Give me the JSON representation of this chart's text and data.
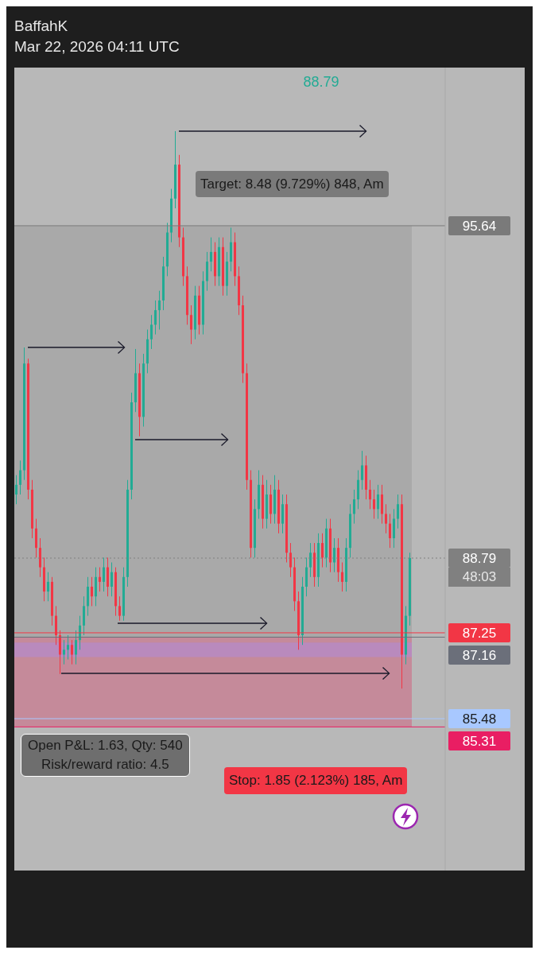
{
  "chart_data": {
    "type": "candlestick",
    "title": "BaffahK",
    "subtitle": "Mar 22, 2026 04:11 UTC",
    "categories": [
      null,
      null,
      null,
      null,
      null,
      null,
      null,
      null,
      null,
      null,
      null,
      null,
      null,
      null,
      null,
      null,
      null,
      null,
      null,
      null,
      null,
      null,
      null,
      null,
      null,
      null,
      null,
      null,
      null,
      null,
      null,
      null,
      null,
      null,
      null,
      null,
      null,
      null,
      null,
      null,
      null,
      null,
      null,
      null,
      null,
      null,
      null,
      null,
      null,
      null,
      null,
      null,
      null,
      null,
      null,
      null,
      null,
      null,
      null,
      null,
      null,
      null,
      null,
      null,
      null,
      null,
      null,
      null,
      null,
      null,
      null,
      null,
      null,
      null,
      null,
      null,
      null,
      null,
      null,
      null,
      null,
      null,
      null,
      null,
      null,
      null,
      null,
      null,
      null,
      null,
      null,
      null,
      null,
      null,
      null,
      null,
      null,
      null,
      null,
      null
    ],
    "ohlc": [
      [
        90.1,
        90.5,
        89.9,
        90.3
      ],
      [
        90.3,
        90.8,
        90.1,
        90.6
      ],
      [
        90.6,
        93.13,
        90.4,
        92.8
      ],
      [
        92.8,
        92.9,
        90.0,
        90.2
      ],
      [
        90.2,
        90.4,
        89.2,
        89.4
      ],
      [
        89.4,
        89.6,
        88.8,
        89.0
      ],
      [
        89.0,
        89.2,
        88.4,
        88.6
      ],
      [
        88.6,
        88.8,
        87.9,
        88.1
      ],
      [
        88.1,
        88.5,
        87.9,
        88.3
      ],
      [
        88.3,
        88.4,
        87.4,
        87.6
      ],
      [
        87.6,
        87.8,
        87.0,
        87.2
      ],
      [
        87.2,
        87.3,
        86.4,
        86.8
      ],
      [
        86.8,
        87.1,
        86.6,
        86.9
      ],
      [
        86.9,
        87.2,
        86.7,
        87.0
      ],
      [
        87.0,
        87.1,
        86.6,
        86.8
      ],
      [
        86.8,
        87.3,
        86.6,
        87.1
      ],
      [
        87.1,
        87.6,
        86.9,
        87.4
      ],
      [
        87.4,
        88.0,
        87.2,
        87.8
      ],
      [
        87.8,
        88.4,
        87.6,
        88.2
      ],
      [
        88.2,
        88.4,
        87.8,
        88.0
      ],
      [
        88.0,
        88.6,
        87.8,
        88.4
      ],
      [
        88.4,
        88.6,
        88.1,
        88.3
      ],
      [
        88.3,
        88.8,
        88.1,
        88.6
      ],
      [
        88.6,
        88.8,
        88.0,
        88.2
      ],
      [
        88.2,
        88.7,
        88.0,
        88.5
      ],
      [
        88.5,
        88.6,
        87.6,
        87.8
      ],
      [
        87.8,
        88.0,
        87.5,
        87.6
      ],
      [
        87.6,
        88.6,
        87.5,
        88.4
      ],
      [
        88.4,
        90.4,
        88.2,
        90.2
      ],
      [
        90.2,
        92.2,
        90.0,
        92.0
      ],
      [
        92.0,
        93.1,
        91.8,
        92.6
      ],
      [
        92.6,
        92.8,
        91.3,
        91.7
      ],
      [
        91.7,
        93.0,
        91.5,
        92.8
      ],
      [
        92.8,
        93.5,
        92.6,
        93.3
      ],
      [
        93.3,
        93.8,
        93.1,
        93.6
      ],
      [
        93.6,
        94.1,
        93.4,
        93.9
      ],
      [
        93.9,
        94.3,
        93.5,
        94.1
      ],
      [
        94.1,
        95.0,
        93.9,
        94.8
      ],
      [
        94.8,
        95.7,
        94.6,
        95.5
      ],
      [
        95.5,
        96.4,
        95.3,
        96.2
      ],
      [
        96.2,
        97.59,
        96.0,
        96.9
      ],
      [
        96.9,
        97.1,
        95.2,
        95.4
      ],
      [
        95.4,
        95.6,
        94.4,
        94.6
      ],
      [
        94.6,
        94.8,
        93.6,
        93.8
      ],
      [
        93.8,
        94.0,
        93.2,
        93.5
      ],
      [
        93.5,
        94.4,
        93.3,
        94.2
      ],
      [
        94.2,
        94.4,
        93.4,
        93.6
      ],
      [
        93.6,
        94.7,
        93.4,
        94.5
      ],
      [
        94.5,
        95.1,
        94.3,
        94.9
      ],
      [
        94.9,
        95.4,
        94.7,
        95.1
      ],
      [
        95.1,
        95.3,
        94.4,
        94.6
      ],
      [
        94.6,
        95.4,
        94.4,
        95.2
      ],
      [
        95.2,
        95.4,
        94.2,
        94.4
      ],
      [
        94.4,
        95.1,
        94.2,
        94.9
      ],
      [
        94.9,
        95.6,
        94.7,
        95.3
      ],
      [
        95.3,
        95.5,
        94.4,
        94.6
      ],
      [
        94.6,
        94.8,
        93.8,
        94.0
      ],
      [
        94.0,
        94.2,
        92.4,
        92.6
      ],
      [
        92.6,
        92.8,
        90.2,
        90.4
      ],
      [
        90.4,
        90.6,
        88.8,
        89.0
      ],
      [
        89.0,
        90.0,
        88.8,
        89.8
      ],
      [
        89.8,
        90.6,
        89.6,
        90.3
      ],
      [
        90.3,
        90.5,
        89.4,
        89.6
      ],
      [
        89.6,
        90.4,
        89.4,
        90.1
      ],
      [
        90.1,
        90.3,
        89.5,
        89.7
      ],
      [
        89.7,
        90.5,
        89.5,
        90.2
      ],
      [
        90.2,
        90.4,
        89.3,
        89.5
      ],
      [
        89.5,
        90.1,
        89.3,
        89.9
      ],
      [
        89.9,
        90.1,
        88.7,
        88.9
      ],
      [
        88.9,
        89.1,
        88.4,
        88.6
      ],
      [
        88.6,
        88.8,
        87.7,
        87.9
      ],
      [
        87.9,
        88.1,
        86.9,
        87.2
      ],
      [
        87.2,
        88.4,
        87.0,
        88.2
      ],
      [
        88.2,
        88.8,
        88.0,
        88.6
      ],
      [
        88.6,
        89.1,
        88.4,
        88.9
      ],
      [
        88.9,
        89.1,
        88.2,
        88.4
      ],
      [
        88.4,
        89.3,
        88.2,
        89.1
      ],
      [
        89.1,
        89.3,
        88.6,
        88.8
      ],
      [
        88.8,
        89.6,
        88.6,
        89.4
      ],
      [
        89.4,
        89.6,
        88.5,
        88.7
      ],
      [
        88.7,
        89.2,
        88.5,
        89.0
      ],
      [
        89.0,
        89.2,
        88.3,
        88.5
      ],
      [
        88.5,
        88.7,
        88.1,
        88.3
      ],
      [
        88.3,
        89.2,
        88.1,
        89.0
      ],
      [
        89.0,
        89.9,
        88.8,
        89.7
      ],
      [
        89.7,
        90.2,
        89.5,
        90.0
      ],
      [
        90.0,
        90.6,
        89.8,
        90.4
      ],
      [
        90.4,
        91.0,
        90.2,
        90.7
      ],
      [
        90.7,
        90.9,
        90.0,
        90.2
      ],
      [
        90.2,
        90.4,
        89.8,
        90.0
      ],
      [
        90.0,
        90.2,
        89.6,
        89.8
      ],
      [
        89.8,
        90.3,
        89.6,
        90.1
      ],
      [
        90.1,
        90.3,
        89.5,
        89.7
      ],
      [
        89.7,
        89.9,
        89.3,
        89.5
      ],
      [
        89.5,
        89.7,
        89.0,
        89.2
      ],
      [
        89.2,
        89.8,
        89.0,
        89.6
      ],
      [
        89.6,
        90.1,
        89.4,
        89.9
      ],
      [
        89.9,
        90.1,
        86.1,
        86.8
      ],
      [
        86.8,
        87.8,
        86.6,
        87.6
      ],
      [
        87.6,
        88.9,
        87.4,
        88.79
      ]
    ],
    "colors": [
      "#22ab94",
      "#22ab94",
      "#22ab94",
      "#f23645",
      "#f23645",
      "#f23645",
      "#f23645",
      "#f23645",
      "#22ab94",
      "#f23645",
      "#f23645",
      "#f23645",
      "#22ab94",
      "#22ab94",
      "#f23645",
      "#22ab94",
      "#22ab94",
      "#22ab94",
      "#22ab94",
      "#f23645",
      "#22ab94",
      "#f23645",
      "#22ab94",
      "#f23645",
      "#22ab94",
      "#f23645",
      "#f23645",
      "#22ab94",
      "#22ab94",
      "#22ab94",
      "#22ab94",
      "#f23645",
      "#22ab94",
      "#22ab94",
      "#22ab94",
      "#22ab94",
      "#22ab94",
      "#22ab94",
      "#22ab94",
      "#22ab94",
      "#22ab94",
      "#f23645",
      "#f23645",
      "#f23645",
      "#f23645",
      "#22ab94",
      "#f23645",
      "#22ab94",
      "#22ab94",
      "#22ab94",
      "#f23645",
      "#22ab94",
      "#f23645",
      "#22ab94",
      "#22ab94",
      "#f23645",
      "#f23645",
      "#f23645",
      "#f23645",
      "#f23645",
      "#22ab94",
      "#22ab94",
      "#f23645",
      "#22ab94",
      "#f23645",
      "#22ab94",
      "#f23645",
      "#22ab94",
      "#f23645",
      "#f23645",
      "#f23645",
      "#f23645",
      "#22ab94",
      "#22ab94",
      "#22ab94",
      "#f23645",
      "#22ab94",
      "#f23645",
      "#22ab94",
      "#f23645",
      "#22ab94",
      "#f23645",
      "#f23645",
      "#22ab94",
      "#22ab94",
      "#22ab94",
      "#22ab94",
      "#22ab94",
      "#f23645",
      "#f23645",
      "#f23645",
      "#22ab94",
      "#f23645",
      "#f23645",
      "#f23645",
      "#22ab94",
      "#22ab94",
      "#f23645",
      "#22ab94",
      "#22ab94"
    ],
    "ylim": [
      82.35,
      98.9
    ],
    "yticks": [
      95.64,
      88.79,
      87.25,
      85.48
    ],
    "tick_labels": "y",
    "ref_lines": [
      {
        "axis": "y",
        "value": 95.64,
        "color": "#7a7a7a",
        "line_style": "solid"
      },
      {
        "axis": "y",
        "value": 88.79,
        "color": "#808080",
        "line_style": "dotted"
      },
      {
        "axis": "y",
        "value": 87.25,
        "color": "#f23645",
        "line_style": "solid"
      },
      {
        "axis": "y",
        "value": 87.16,
        "label": "87.16",
        "color": "#6b6f7a",
        "line_style": "solid"
      },
      {
        "axis": "y",
        "value": 85.48,
        "color": "#a8c8ff",
        "line_style": "solid"
      },
      {
        "axis": "y",
        "value": 85.31,
        "label": "85.31",
        "color": "#e91e63",
        "line_style": "solid"
      }
    ],
    "bands": [
      {
        "axis": "y",
        "from": 87.16,
        "to": 95.64,
        "color": "#a4a4a4"
      },
      {
        "axis": "y",
        "from": 85.31,
        "to": 87.16,
        "color": "#c97b90"
      },
      {
        "axis": "y",
        "from": 86.75,
        "to": 87.05,
        "color": "#b48ac8"
      }
    ],
    "annotations": [
      "88.79",
      "Target: 8.48 (9.729%) 848, Am",
      "Open P&L: 1.63, Qty: 540",
      "Risk/reward ratio: 4.5",
      "48:03",
      "Stop: 1.85 (2.123%) 185, Am"
    ]
  }
}
